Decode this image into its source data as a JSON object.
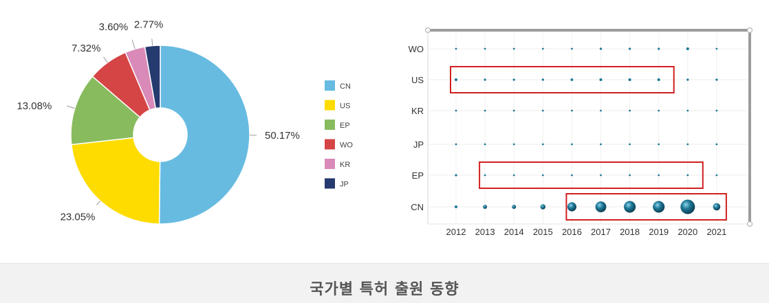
{
  "caption": "국가별 특허 출원 동향",
  "chart_data": [
    {
      "type": "pie",
      "title": "",
      "donut": true,
      "legend_position": "right",
      "slices": [
        {
          "label": "CN",
          "value": 50.17,
          "label_text": "50.17%",
          "color": "#67bbe1"
        },
        {
          "label": "US",
          "value": 23.05,
          "label_text": "23.05%",
          "color": "#fedc00"
        },
        {
          "label": "EP",
          "value": 13.08,
          "label_text": "13.08%",
          "color": "#88bb5e"
        },
        {
          "label": "WO",
          "value": 7.32,
          "label_text": "7.32%",
          "color": "#d64545"
        },
        {
          "label": "KR",
          "value": 3.6,
          "label_text": "3.60%",
          "color": "#d98ab8"
        },
        {
          "label": "JP",
          "value": 2.77,
          "label_text": "2.77%",
          "color": "#253a6e"
        }
      ]
    },
    {
      "type": "scatter",
      "subtype": "bubble",
      "title": "",
      "x_categories": [
        "2012",
        "2013",
        "2014",
        "2015",
        "2016",
        "2017",
        "2018",
        "2019",
        "2020",
        "2021"
      ],
      "y_categories": [
        "WO",
        "US",
        "KR",
        "JP",
        "EP",
        "CN"
      ],
      "grid": true,
      "bubble_color": "#1f7a98",
      "relative_size": {
        "WO": [
          1,
          1,
          1,
          1,
          1,
          1.2,
          1.2,
          1.2,
          1.5,
          1
        ],
        "US": [
          1.5,
          1.2,
          1.2,
          1.2,
          1.4,
          1.5,
          1.5,
          1.5,
          1.2,
          1.2
        ],
        "KR": [
          1,
          1,
          1,
          1,
          1,
          1,
          1,
          1,
          1,
          1
        ],
        "JP": [
          1,
          1,
          1,
          1,
          1,
          1,
          1,
          1,
          1,
          1
        ],
        "EP": [
          1.2,
          1,
          1,
          1,
          1,
          1,
          1,
          1,
          1,
          1
        ],
        "CN": [
          1.5,
          2.2,
          2.2,
          2.8,
          5,
          6,
          6.5,
          6.5,
          8,
          4
        ]
      },
      "highlight_boxes": [
        {
          "row": "US",
          "from": "2012",
          "to": "2019",
          "color": "#d11f1f"
        },
        {
          "row": "EP",
          "from": "2013",
          "to": "2020",
          "color": "#d11f1f"
        },
        {
          "row": "CN",
          "from": "2016",
          "to": "2021",
          "color": "#d11f1f"
        }
      ]
    }
  ]
}
